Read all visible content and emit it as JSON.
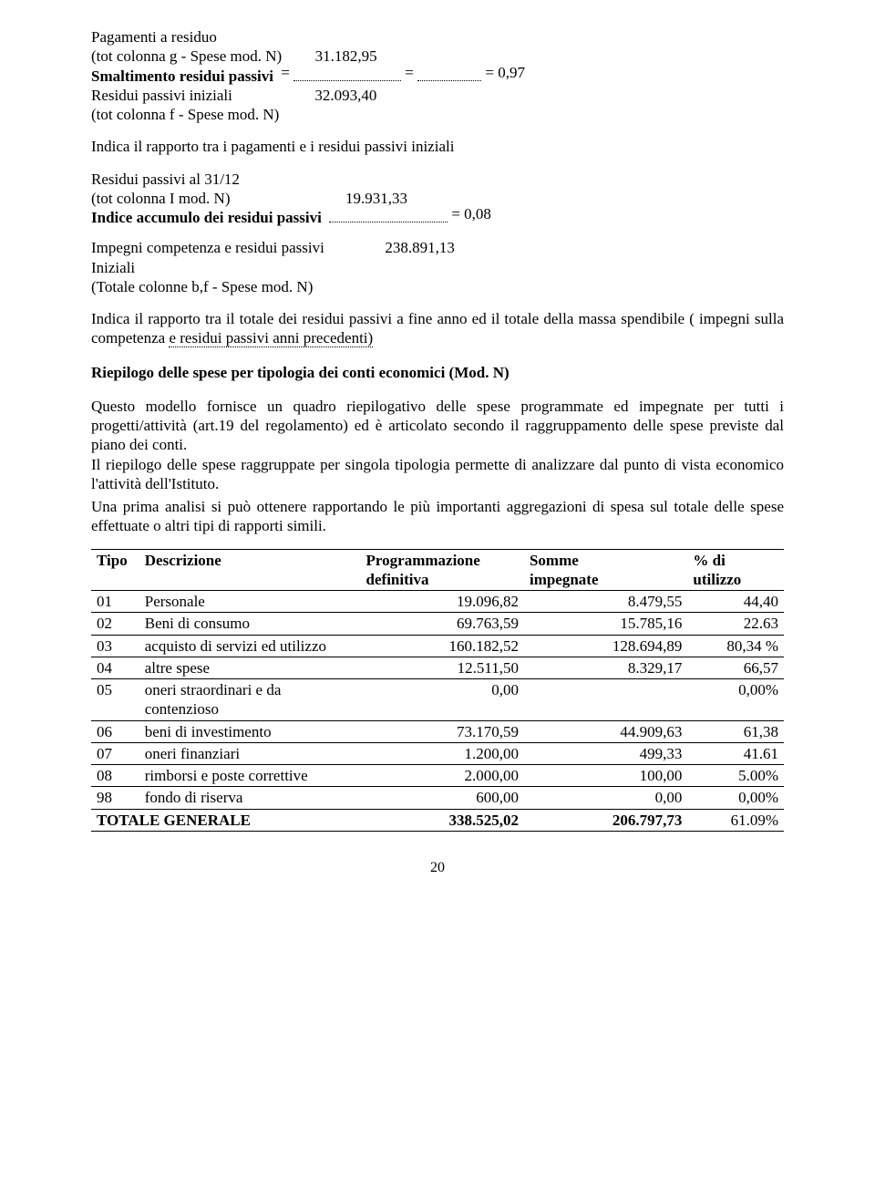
{
  "block1": {
    "l1": "Pagamenti a residuo",
    "l2a": "(tot colonna g - Spese mod. N)",
    "l2b": "31.182,95",
    "l3a": "Smaltimento residui passivi",
    "l3b": "=",
    "l3c": "=",
    "l3d": "= 0,97",
    "l4a": "Residui passivi iniziali",
    "l4b": "32.093,40",
    "l5": "(tot colonna f - Spese mod. N)"
  },
  "block1_desc": "Indica il  rapporto tra i pagamenti e i residui passivi   iniziali",
  "block2": {
    "l1": "Residui passivi al 31/12",
    "l2a": "(tot colonna I mod. N)",
    "l2b": "19.931,33",
    "l3a": "Indice accumulo dei residui passivi",
    "l3b": "= 0,08",
    "l4a": "Impegni competenza  e  residui  passivi",
    "l4b": "238.891,13",
    "l5": "Iniziali",
    "l6": "(Totale colonne b,f - Spese mod. N)"
  },
  "block2_desc_a": "Indica il rapporto tra il totale dei residui passivi a fine anno  ed il totale della massa spendibile  ( impegni sulla competenza  ",
  "block2_desc_b": "e residui passivi anni precedenti)",
  "riepilogo_title": "Riepilogo delle spese per tipologia dei conti economici (Mod. N)",
  "riepilogo_p1": "Questo modello fornisce un quadro riepilogativo delle spese programmate ed impegnate per tutti i progetti/attività (art.19 del regolamento) ed è articolato secondo il raggruppamento delle spese previste dal piano dei conti.",
  "riepilogo_p2": "Il riepilogo delle spese raggruppate per singola tipologia permette di analizzare dal punto di vista economico l'attività dell'Istituto.",
  "riepilogo_p3": "Una prima analisi si può ottenere rapportando le più importanti aggregazioni di spesa sul  totale delle spese effettuate o altri tipi di rapporti simili.",
  "table": {
    "headers": {
      "c1": "Tipo",
      "c2": "Descrizione",
      "c3a": "Programmazione",
      "c3b": "definitiva",
      "c4a": "Somme",
      "c4b": "impegnate",
      "c5a": "% di",
      "c5b": "utilizzo"
    },
    "rows": [
      {
        "c1": "01",
        "c2": "Personale",
        "c3": "19.096,82",
        "c4": "8.479,55",
        "c5": "44,40"
      },
      {
        "c1": "02",
        "c2": "Beni di consumo",
        "c3": "69.763,59",
        "c4": "15.785,16",
        "c5": "22.63"
      },
      {
        "c1": "03",
        "c2": "acquisto di servizi ed utilizzo",
        "c3": "160.182,52",
        "c4": "128.694,89",
        "c5": "80,34 %"
      },
      {
        "c1": "04",
        "c2": "altre spese",
        "c3": "12.511,50",
        "c4": "8.329,17",
        "c5": "66,57"
      },
      {
        "c1": "05",
        "c2": "oneri straordinari e da contenzioso",
        "c3": "0,00",
        "c4": "",
        "c5": "0,00%"
      },
      {
        "c1": "06",
        "c2": "beni di investimento",
        "c3": "73.170,59",
        "c4": "44.909,63",
        "c5": "61,38"
      },
      {
        "c1": "07",
        "c2": "oneri finanziari",
        "c3": "1.200,00",
        "c4": "499,33",
        "c5": "41.61"
      },
      {
        "c1": "08",
        "c2": "rimborsi e poste correttive",
        "c3": "2.000,00",
        "c4": "100,00",
        "c5": "5.00%"
      },
      {
        "c1": "98",
        "c2": "fondo di riserva",
        "c3": "600,00",
        "c4": "0,00",
        "c5": "0,00%"
      }
    ],
    "total": {
      "c1": "",
      "c2": "TOTALE GENERALE",
      "c3": "338.525,02",
      "c4": "206.797,73",
      "c5": "61.09%"
    },
    "col_widths": [
      "50px",
      "260px",
      "150px",
      "150px",
      "90px"
    ]
  },
  "page_number": "20",
  "colors": {
    "text": "#000000",
    "bg": "#ffffff",
    "border": "#000000"
  }
}
